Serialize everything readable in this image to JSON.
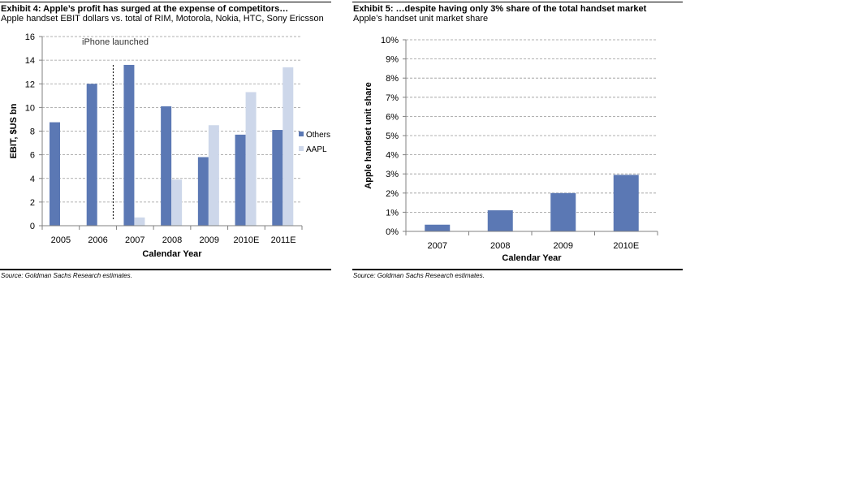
{
  "colors": {
    "others": "#5b78b4",
    "aapl": "#cdd7ea",
    "grid": "#999999",
    "axis": "#808080"
  },
  "exhibits": {
    "ex4": {
      "title": "Exhibit 4: Apple’s profit has surged at the expense of competitors…",
      "subtitle": "Apple handset EBIT dollars vs. total of RIM, Motorola, Nokia, HTC, Sony Ericsson",
      "source": "Source: Goldman Sachs Research estimates."
    },
    "ex5": {
      "title": "Exhibit 5: …despite having only 3% share of the total handset market",
      "subtitle": "Apple’s handset unit market share",
      "source": "Source: Goldman Sachs Research estimates."
    }
  },
  "chart_data": [
    {
      "type": "bar",
      "categories": [
        "2005",
        "2006",
        "2007",
        "2008",
        "2009",
        "2010E",
        "2011E"
      ],
      "series": [
        {
          "name": "Others",
          "values": [
            8.75,
            12.0,
            13.6,
            10.1,
            5.8,
            7.7,
            8.1
          ]
        },
        {
          "name": "AAPL",
          "values": [
            0,
            0,
            0.7,
            3.9,
            8.5,
            11.3,
            13.4
          ]
        }
      ],
      "xlabel": "Calendar Year",
      "ylabel": "EBIT, $US bn",
      "ylim": [
        0,
        16
      ],
      "yticks": [
        "0",
        "2",
        "4",
        "6",
        "8",
        "10",
        "12",
        "14",
        "16"
      ],
      "grid": true,
      "legend": "right",
      "annotation": "iPhone launched"
    },
    {
      "type": "bar",
      "categories": [
        "2007",
        "2008",
        "2009",
        "2010E"
      ],
      "values": [
        0.35,
        1.1,
        2.0,
        2.95
      ],
      "xlabel": "Calendar Year",
      "ylabel": "Apple handset unit share",
      "ylim": [
        0,
        10
      ],
      "yticks": [
        "0%",
        "1%",
        "2%",
        "3%",
        "4%",
        "5%",
        "6%",
        "7%",
        "8%",
        "9%",
        "10%"
      ],
      "grid": true
    }
  ]
}
